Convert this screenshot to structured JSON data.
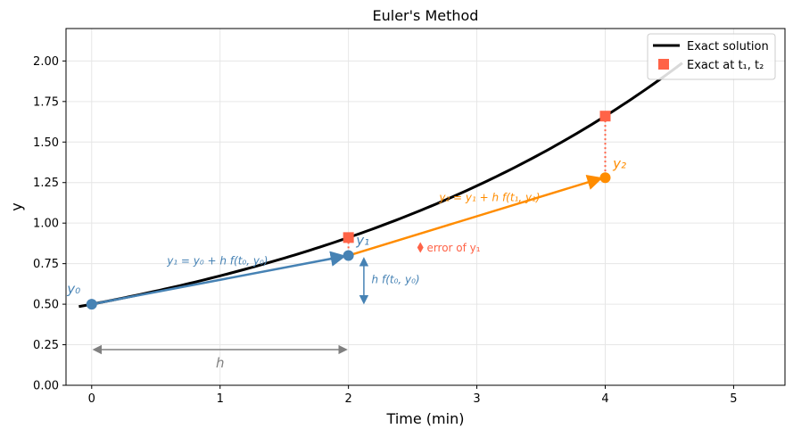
{
  "chart_data": {
    "type": "line",
    "title": "Euler's Method",
    "xlabel": "Time  (min)",
    "ylabel": "y",
    "xlim": [
      -0.2,
      5.4
    ],
    "ylim": [
      0,
      2.2
    ],
    "xticks": [
      "0",
      "1",
      "2",
      "3",
      "4",
      "5"
    ],
    "yticks": [
      "0.00",
      "0.25",
      "0.50",
      "0.75",
      "1.00",
      "1.25",
      "1.50",
      "1.75",
      "2.00"
    ],
    "grid": true,
    "legend_position": "top-right",
    "series": [
      {
        "name": "Exact solution",
        "color": "#000000",
        "function": "0.5*exp(0.3*t)",
        "x_range": [
          -0.1,
          4.6
        ]
      },
      {
        "name": "Exact at t1, t2",
        "marker": "square",
        "color": "#ff6347",
        "x": [
          2,
          4
        ],
        "y": [
          0.911,
          1.66
        ]
      }
    ],
    "euler_points": [
      {
        "label": "y0",
        "x": 0,
        "y": 0.5,
        "color": "#4682b4"
      },
      {
        "label": "y1",
        "x": 2,
        "y": 0.8,
        "color": "#4682b4"
      },
      {
        "label": "y2",
        "x": 4,
        "y": 1.28,
        "color": "#ff8c00"
      }
    ],
    "annotations": {
      "step1": "y₁ = y₀ + h f(t₀, y₀)",
      "step2": "y₂ = y₁ + h f(t₁, y₁)",
      "slope": "h f(t₀, y₀)",
      "error": "error of y₁",
      "h": "h",
      "y0": "y₀",
      "y1": "y₁",
      "y2": "y₂"
    },
    "legend": {
      "exact": "Exact solution",
      "markers": "Exact at t₁, t₂"
    }
  }
}
